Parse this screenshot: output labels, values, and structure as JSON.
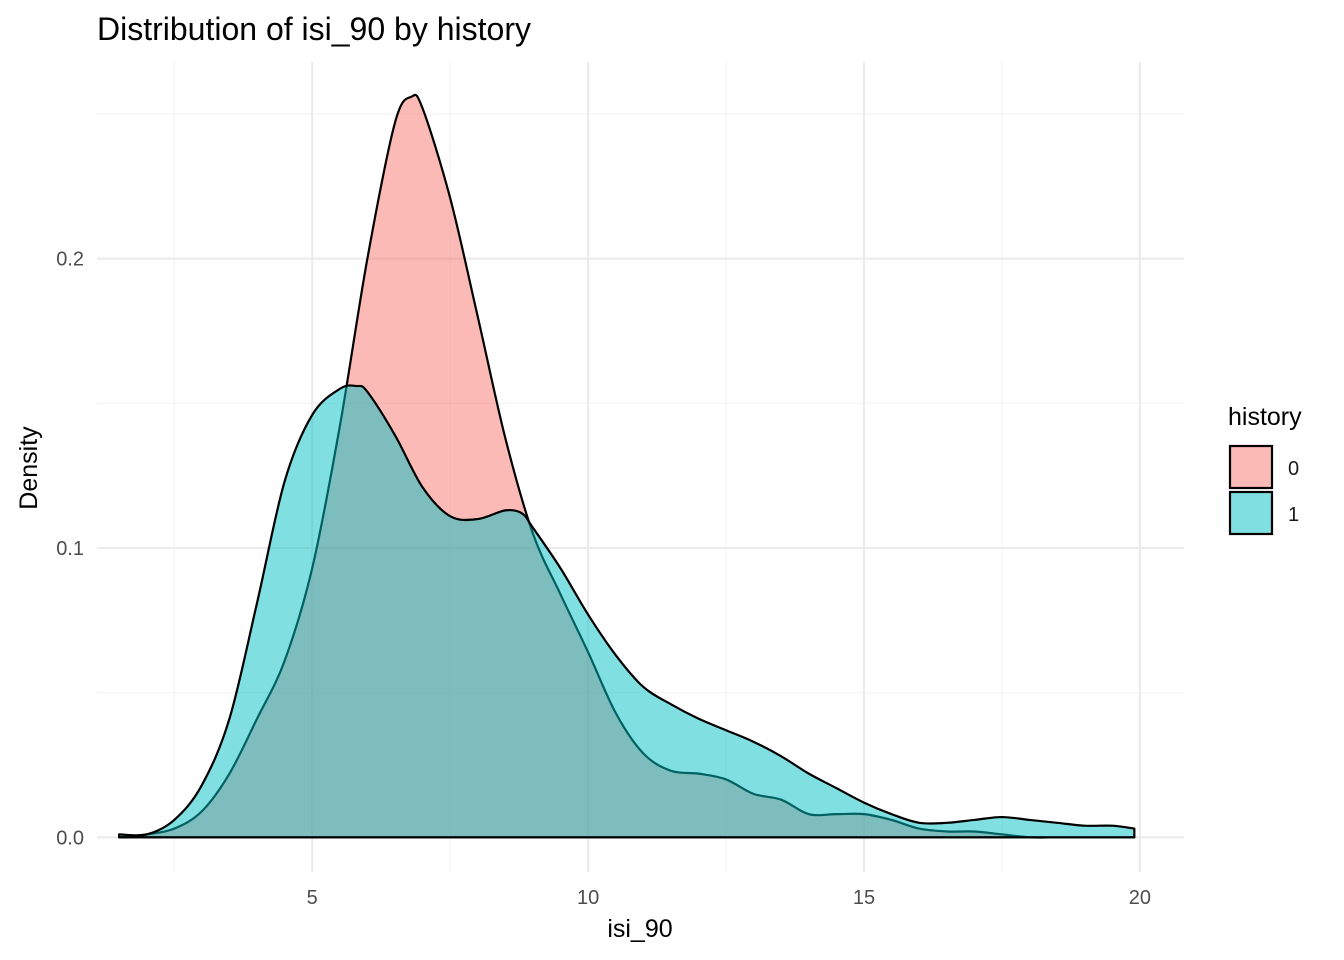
{
  "chart_data": {
    "type": "area",
    "title": "Distribution of isi_90 by history",
    "xlabel": "isi_90",
    "ylabel": "Density",
    "xlim": [
      1.1,
      20.8
    ],
    "ylim": [
      -0.012,
      0.268
    ],
    "x_ticks": [
      5,
      10,
      15,
      20
    ],
    "x_tick_labels": [
      "5",
      "10",
      "15",
      "20"
    ],
    "y_ticks": [
      0.0,
      0.1,
      0.2
    ],
    "y_tick_labels": [
      "0.0",
      "0.1",
      "0.2"
    ],
    "grid": true,
    "legend": {
      "title": "history",
      "position": "right"
    },
    "series": [
      {
        "name": "0",
        "color": "#F8766D",
        "x": [
          1.5,
          2.0,
          2.5,
          3.0,
          3.5,
          4.0,
          4.5,
          5.0,
          5.5,
          6.0,
          6.5,
          6.8,
          7.0,
          7.5,
          8.0,
          8.5,
          9.0,
          9.5,
          10.0,
          10.5,
          11.0,
          11.5,
          12.0,
          12.5,
          13.0,
          13.5,
          14.0,
          14.5,
          15.0,
          15.5,
          16.0,
          16.5,
          17.0,
          17.5,
          18.0,
          18.5,
          19.0,
          19.5,
          19.9
        ],
        "y": [
          0.0,
          0.001,
          0.003,
          0.009,
          0.022,
          0.041,
          0.061,
          0.093,
          0.142,
          0.2,
          0.247,
          0.256,
          0.252,
          0.221,
          0.18,
          0.138,
          0.105,
          0.084,
          0.064,
          0.043,
          0.029,
          0.023,
          0.022,
          0.02,
          0.015,
          0.013,
          0.008,
          0.008,
          0.008,
          0.006,
          0.003,
          0.002,
          0.002,
          0.001,
          0.0,
          0.0,
          0.0,
          0.0,
          0.0
        ]
      },
      {
        "name": "1",
        "color": "#00BFC4",
        "x": [
          1.5,
          2.0,
          2.5,
          3.0,
          3.5,
          4.0,
          4.5,
          5.0,
          5.5,
          5.8,
          6.0,
          6.5,
          7.0,
          7.5,
          8.0,
          8.5,
          8.8,
          9.0,
          9.5,
          10.0,
          10.5,
          11.0,
          11.5,
          12.0,
          12.5,
          13.0,
          13.5,
          14.0,
          14.5,
          15.0,
          15.5,
          16.0,
          16.5,
          17.0,
          17.5,
          18.0,
          18.5,
          19.0,
          19.5,
          19.9
        ],
        "y": [
          0.001,
          0.001,
          0.006,
          0.018,
          0.041,
          0.081,
          0.123,
          0.146,
          0.155,
          0.156,
          0.154,
          0.139,
          0.121,
          0.111,
          0.11,
          0.113,
          0.112,
          0.107,
          0.093,
          0.077,
          0.063,
          0.052,
          0.046,
          0.041,
          0.037,
          0.033,
          0.028,
          0.022,
          0.017,
          0.012,
          0.008,
          0.005,
          0.005,
          0.006,
          0.007,
          0.006,
          0.005,
          0.004,
          0.004,
          0.003
        ]
      }
    ]
  }
}
